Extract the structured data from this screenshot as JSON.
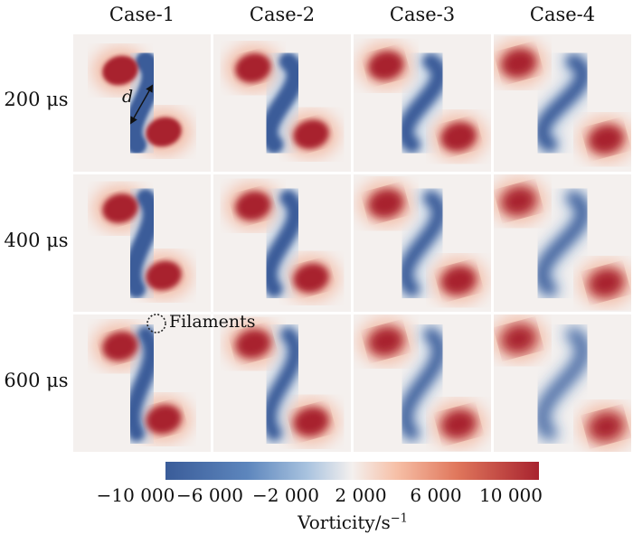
{
  "columns": [
    "Case-1",
    "Case-2",
    "Case-3",
    "Case-4"
  ],
  "rows": [
    "200 μs",
    "400 μs",
    "600 μs"
  ],
  "annotations": {
    "distance_label": "d",
    "filaments_label": "Filaments"
  },
  "colorbar": {
    "ticks": [
      "−10 000",
      "−6 000",
      "−2 000",
      "2 000",
      "6 000",
      "10 000"
    ],
    "label": "Vorticity/s",
    "label_exponent": "−1",
    "colors": {
      "negative": "#3a5c99",
      "zero": "#f4f0ee",
      "positive": "#a8232f"
    }
  }
}
